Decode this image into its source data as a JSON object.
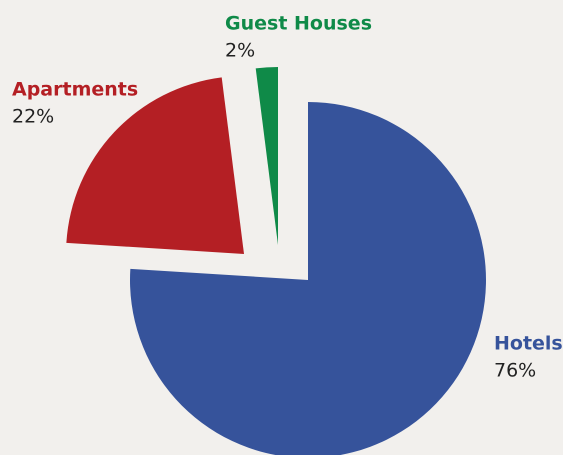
{
  "chart_data": {
    "type": "pie",
    "categories": [
      "Hotels",
      "Apartments",
      "Guest Houses"
    ],
    "values": [
      76,
      22,
      2
    ],
    "value_labels": [
      "76%",
      "22%",
      "2%"
    ],
    "colors": [
      "#36539b",
      "#b41f24",
      "#0f8a48"
    ]
  }
}
